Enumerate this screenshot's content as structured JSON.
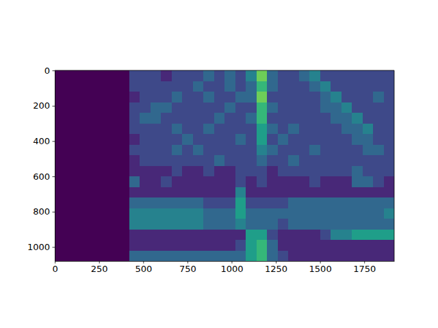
{
  "chart_data": {
    "type": "heatmap",
    "color": "viridis",
    "xlim": [
      -0.5,
      1919.5
    ],
    "ylim": [
      1079.5,
      -0.5
    ],
    "xticks": [
      0,
      250,
      500,
      750,
      1000,
      1250,
      1500,
      1750
    ],
    "yticks": [
      0,
      200,
      400,
      600,
      800,
      1000
    ],
    "x_bins": [
      -0.5,
      59.5,
      119.5,
      179.5,
      239.5,
      299.5,
      359.5,
      419.5,
      479.5,
      539.5,
      599.5,
      659.5,
      719.5,
      779.5,
      839.5,
      899.5,
      959.5,
      1019.5,
      1079.5,
      1139.5,
      1199.5,
      1259.5,
      1319.5,
      1379.5,
      1439.5,
      1499.5,
      1559.5,
      1619.5,
      1679.5,
      1739.5,
      1799.5,
      1859.5,
      1919.5
    ],
    "y_bins": [
      -0.5,
      59.5,
      119.5,
      179.5,
      239.5,
      299.5,
      359.5,
      419.5,
      479.5,
      539.5,
      599.5,
      659.5,
      719.5,
      779.5,
      839.5,
      899.5,
      959.5,
      1019.5,
      1079.5
    ],
    "color_range": [
      0,
      9
    ],
    "cells": [
      [
        0,
        0,
        0,
        0,
        0,
        0,
        0,
        2,
        2,
        2,
        1,
        2,
        2,
        2,
        3,
        2,
        3,
        2,
        4,
        7,
        3,
        2,
        2,
        3,
        4,
        2,
        2,
        2,
        2,
        2,
        2,
        2
      ],
      [
        0,
        0,
        0,
        0,
        0,
        0,
        0,
        2,
        2,
        2,
        2,
        2,
        2,
        3,
        2,
        2,
        3,
        2,
        3,
        6,
        3,
        2,
        2,
        2,
        3,
        4,
        2,
        2,
        2,
        2,
        2,
        2
      ],
      [
        0,
        0,
        0,
        0,
        0,
        0,
        0,
        1,
        2,
        2,
        2,
        3,
        2,
        2,
        3,
        2,
        2,
        3,
        3,
        7,
        2,
        2,
        2,
        2,
        2,
        3,
        4,
        2,
        2,
        2,
        3,
        2
      ],
      [
        0,
        0,
        0,
        0,
        0,
        0,
        0,
        2,
        2,
        3,
        3,
        2,
        2,
        2,
        2,
        2,
        3,
        2,
        2,
        6,
        3,
        2,
        2,
        2,
        2,
        3,
        3,
        4,
        2,
        2,
        2,
        2
      ],
      [
        0,
        0,
        0,
        0,
        0,
        0,
        0,
        2,
        3,
        3,
        2,
        2,
        2,
        2,
        2,
        3,
        2,
        2,
        3,
        6,
        2,
        2,
        2,
        2,
        2,
        2,
        3,
        3,
        4,
        2,
        2,
        2
      ],
      [
        0,
        0,
        0,
        0,
        0,
        0,
        0,
        2,
        2,
        2,
        2,
        3,
        2,
        2,
        3,
        2,
        2,
        2,
        2,
        5,
        3,
        2,
        3,
        2,
        2,
        2,
        2,
        3,
        3,
        4,
        2,
        2
      ],
      [
        0,
        0,
        0,
        0,
        0,
        0,
        0,
        1,
        2,
        2,
        2,
        2,
        3,
        2,
        2,
        2,
        2,
        3,
        2,
        5,
        2,
        3,
        2,
        2,
        2,
        2,
        2,
        2,
        3,
        3,
        2,
        2
      ],
      [
        0,
        0,
        0,
        0,
        0,
        0,
        0,
        2,
        2,
        2,
        2,
        3,
        2,
        3,
        2,
        2,
        2,
        2,
        2,
        4,
        3,
        2,
        2,
        2,
        3,
        2,
        2,
        2,
        2,
        3,
        3,
        2
      ],
      [
        0,
        0,
        0,
        0,
        0,
        0,
        0,
        1,
        2,
        2,
        2,
        2,
        2,
        2,
        2,
        3,
        2,
        2,
        2,
        3,
        2,
        2,
        3,
        2,
        2,
        2,
        2,
        2,
        2,
        2,
        2,
        2
      ],
      [
        0,
        0,
        0,
        0,
        0,
        0,
        0,
        1,
        1,
        1,
        1,
        2,
        1,
        1,
        2,
        1,
        1,
        2,
        2,
        2,
        1,
        2,
        2,
        2,
        2,
        2,
        2,
        2,
        3,
        2,
        2,
        2
      ],
      [
        0,
        0,
        0,
        0,
        0,
        0,
        0,
        3,
        1,
        1,
        2,
        1,
        1,
        1,
        1,
        1,
        1,
        2,
        1,
        2,
        1,
        1,
        1,
        1,
        2,
        1,
        1,
        1,
        3,
        3,
        2,
        1
      ],
      [
        0,
        0,
        0,
        0,
        0,
        0,
        0,
        1,
        1,
        1,
        1,
        1,
        1,
        1,
        1,
        1,
        1,
        4,
        1,
        1,
        1,
        1,
        1,
        1,
        1,
        1,
        1,
        1,
        1,
        1,
        1,
        1
      ],
      [
        0,
        0,
        0,
        0,
        0,
        0,
        0,
        3,
        3,
        3,
        3,
        3,
        3,
        3,
        2,
        2,
        2,
        5,
        2,
        2,
        2,
        2,
        3,
        3,
        3,
        3,
        3,
        3,
        3,
        3,
        3,
        3
      ],
      [
        0,
        0,
        0,
        0,
        0,
        0,
        0,
        4,
        4,
        4,
        4,
        4,
        4,
        4,
        3,
        3,
        3,
        5,
        3,
        3,
        3,
        3,
        3,
        3,
        3,
        3,
        3,
        3,
        3,
        3,
        3,
        4
      ],
      [
        0,
        0,
        0,
        0,
        0,
        0,
        0,
        4,
        4,
        4,
        4,
        4,
        4,
        4,
        3,
        3,
        3,
        4,
        3,
        3,
        3,
        2,
        3,
        3,
        3,
        3,
        3,
        3,
        3,
        3,
        3,
        3
      ],
      [
        0,
        0,
        0,
        0,
        0,
        0,
        0,
        1,
        1,
        1,
        1,
        1,
        1,
        1,
        1,
        1,
        1,
        1,
        5,
        5,
        2,
        1,
        1,
        1,
        1,
        2,
        4,
        4,
        5,
        5,
        5,
        5
      ],
      [
        0,
        0,
        0,
        0,
        0,
        0,
        0,
        1,
        1,
        1,
        1,
        1,
        1,
        1,
        1,
        1,
        1,
        2,
        5,
        6,
        3,
        1,
        1,
        1,
        1,
        1,
        1,
        1,
        1,
        1,
        1,
        1
      ],
      [
        0,
        0,
        0,
        0,
        0,
        0,
        0,
        3,
        3,
        3,
        3,
        3,
        3,
        3,
        3,
        3,
        3,
        3,
        5,
        6,
        3,
        2,
        1,
        1,
        1,
        1,
        1,
        1,
        1,
        1,
        1,
        1
      ]
    ]
  }
}
